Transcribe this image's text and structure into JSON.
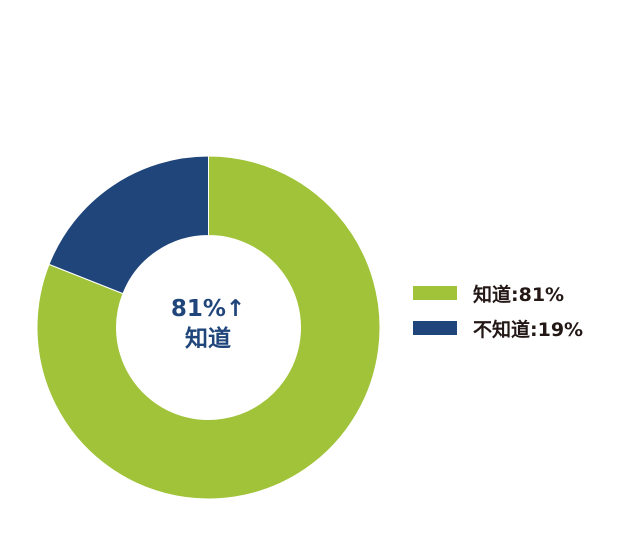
{
  "chart_data": {
    "type": "pie",
    "variant": "donut",
    "slices": [
      {
        "label": "知道",
        "value": 81,
        "color": "#a0c33a"
      },
      {
        "label": "不知道",
        "value": 19,
        "color": "#1f457a"
      }
    ],
    "center_label": {
      "value": "81%↑",
      "label": "知道"
    },
    "legend": {
      "position": "right",
      "items": [
        "知道:81%",
        "不知道:19%"
      ]
    },
    "start_angle": "top",
    "direction": "clockwise"
  }
}
